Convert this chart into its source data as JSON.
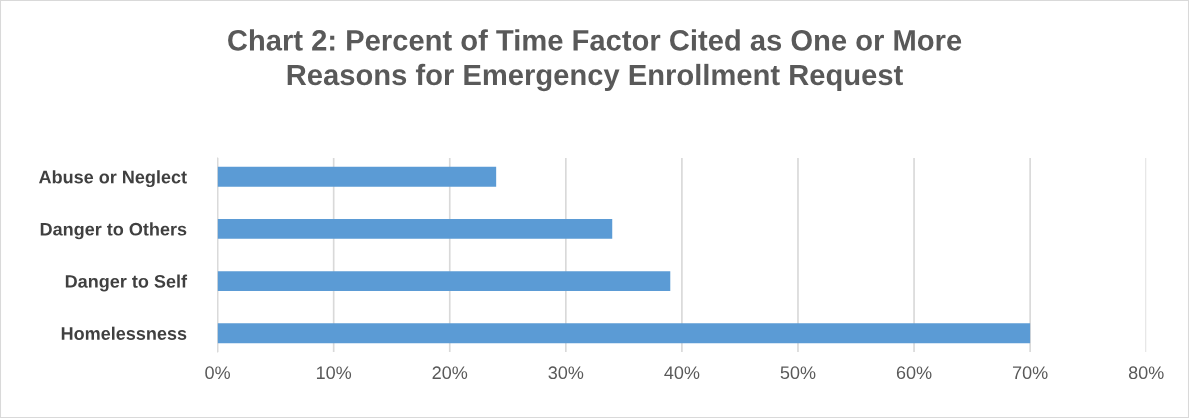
{
  "chart_data": {
    "type": "bar",
    "orientation": "horizontal",
    "title": "Chart 2: Percent of Time Factor Cited as One or More\nReasons for Emergency Enrollment Request",
    "categories": [
      "Abuse or Neglect",
      "Danger to Others",
      "Danger to Self",
      "Homelessness"
    ],
    "values": [
      24,
      34,
      39,
      70
    ],
    "color": "#5b9bd5",
    "xlim": [
      0,
      80
    ],
    "xticks": [
      {
        "value": 0,
        "label": "0%"
      },
      {
        "value": 10,
        "label": "10%"
      },
      {
        "value": 20,
        "label": "20%"
      },
      {
        "value": 30,
        "label": "30%"
      },
      {
        "value": 40,
        "label": "40%"
      },
      {
        "value": 50,
        "label": "50%"
      },
      {
        "value": 60,
        "label": "60%"
      },
      {
        "value": 70,
        "label": "70%"
      },
      {
        "value": 80,
        "label": "80%"
      }
    ],
    "grid": "x",
    "legend": false
  }
}
